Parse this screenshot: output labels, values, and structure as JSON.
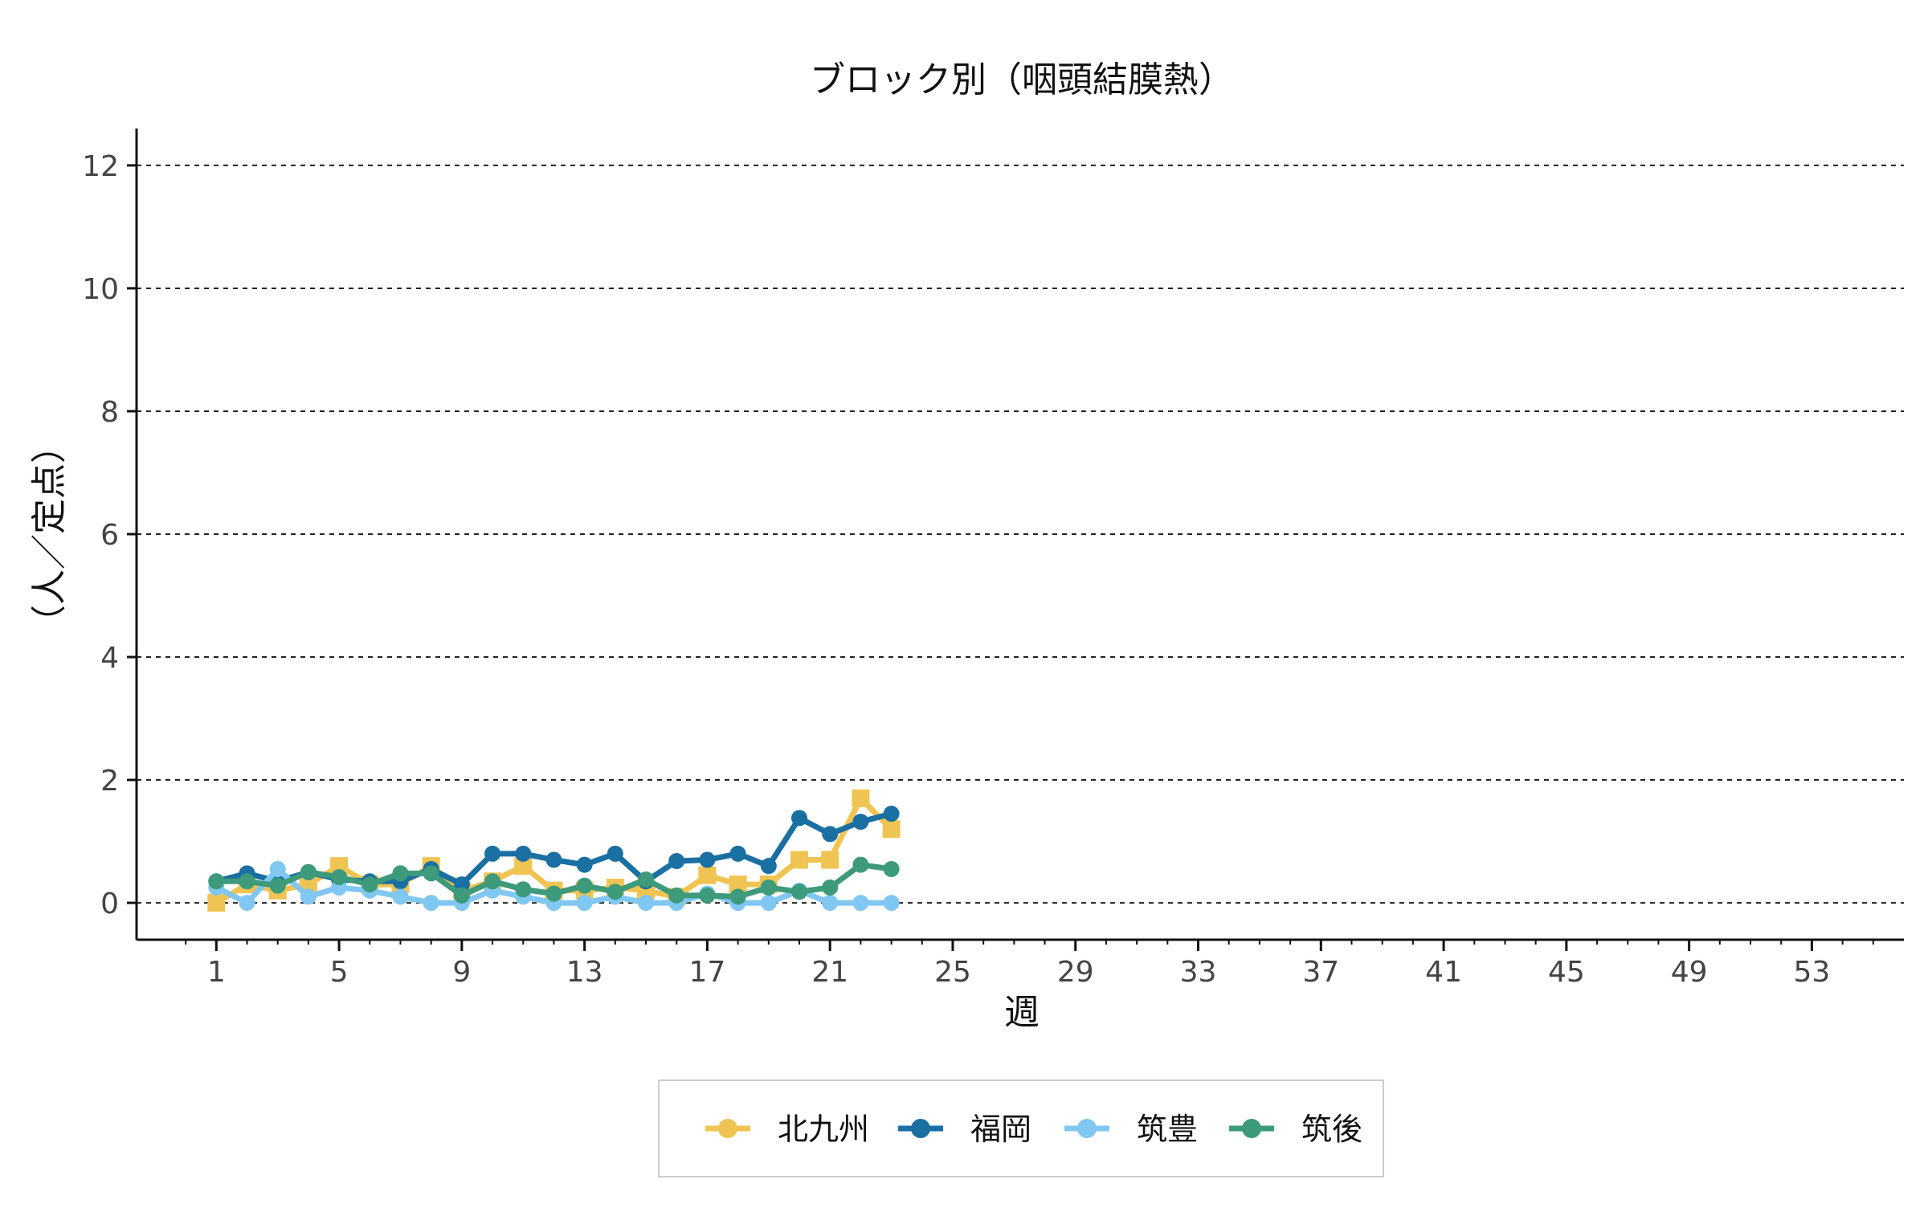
{
  "chart_data": {
    "type": "line",
    "title": "ブロック別（咽頭結膜熱）",
    "xlabel": "週",
    "ylabel": "（人／定点）",
    "xlim": [
      -1.6,
      56
    ],
    "ylim": [
      -0.6,
      12.6
    ],
    "x_ticks": [
      1,
      5,
      9,
      13,
      17,
      21,
      25,
      29,
      33,
      37,
      41,
      45,
      49,
      53
    ],
    "y_ticks": [
      0,
      2,
      4,
      6,
      8,
      10,
      12
    ],
    "grid": "horizontal-dashed",
    "legend_position": "bottom",
    "x": [
      1,
      2,
      3,
      4,
      5,
      6,
      7,
      8,
      9,
      10,
      11,
      12,
      13,
      14,
      15,
      16,
      17,
      18,
      19,
      20,
      21,
      22,
      23
    ],
    "series": [
      {
        "name": "北九州",
        "color": "#F0C452",
        "marker": "square",
        "values": [
          0.0,
          0.3,
          0.2,
          0.3,
          0.6,
          0.3,
          0.3,
          0.6,
          0.2,
          0.35,
          0.6,
          0.2,
          0.2,
          0.25,
          0.2,
          0.1,
          0.45,
          0.3,
          0.3,
          0.7,
          0.7,
          1.7,
          1.2
        ]
      },
      {
        "name": "福岡",
        "color": "#1A6FA3",
        "marker": "circle",
        "values": [
          0.35,
          0.48,
          0.35,
          0.5,
          0.38,
          0.35,
          0.35,
          0.55,
          0.3,
          0.8,
          0.8,
          0.7,
          0.62,
          0.8,
          0.35,
          0.68,
          0.7,
          0.8,
          0.6,
          1.38,
          1.12,
          1.32,
          1.45
        ]
      },
      {
        "name": "筑豊",
        "color": "#80C7F2",
        "marker": "circle",
        "values": [
          0.25,
          0.0,
          0.55,
          0.1,
          0.25,
          0.2,
          0.1,
          0.0,
          0.0,
          0.2,
          0.1,
          0.0,
          0.0,
          0.1,
          0.0,
          0.0,
          0.15,
          0.0,
          0.0,
          0.2,
          0.0,
          0.0,
          0.0
        ]
      },
      {
        "name": "筑後",
        "color": "#3D9A7A",
        "marker": "circle",
        "values": [
          0.35,
          0.35,
          0.28,
          0.5,
          0.42,
          0.3,
          0.48,
          0.48,
          0.12,
          0.35,
          0.22,
          0.15,
          0.28,
          0.18,
          0.38,
          0.12,
          0.12,
          0.1,
          0.25,
          0.18,
          0.25,
          0.62,
          0.55
        ]
      }
    ]
  }
}
